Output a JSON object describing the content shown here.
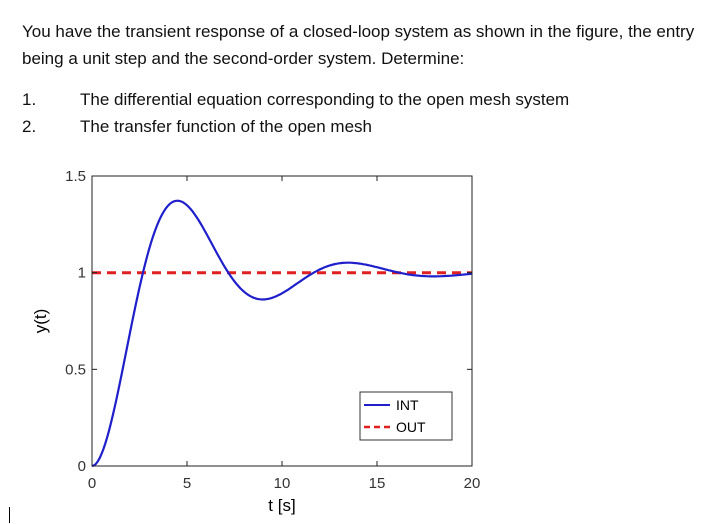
{
  "problem": {
    "statement": "You have the transient response of a closed-loop system as shown in the figure, the entry being a unit step and the second-order system. Determine:",
    "items": [
      {
        "number": "1.",
        "text": "The differential equation corresponding to the open mesh system"
      },
      {
        "number": "2.",
        "text": "The transfer function of the open mesh"
      }
    ]
  },
  "chart_data": {
    "type": "line",
    "xlabel": "t [s]",
    "ylabel": "y(t)",
    "xlim": [
      0,
      20
    ],
    "ylim": [
      0,
      1.5
    ],
    "xticks": [
      0,
      5,
      10,
      15,
      20
    ],
    "yticks": [
      0,
      0.5,
      1,
      1.5
    ],
    "xtick_labels": [
      "0",
      "5",
      "10",
      "15",
      "20"
    ],
    "ytick_labels": [
      "0",
      "0.5",
      "1",
      "1.5"
    ],
    "legend_position": "bottom-right",
    "series": [
      {
        "name": "INT",
        "color": "#1f1fcc",
        "style": "solid",
        "model": "second-order step response",
        "overshoot_peak": [
          4.5,
          1.4
        ],
        "undershoot": [
          8.8,
          0.83
        ],
        "second_peak": [
          13.2,
          1.07
        ],
        "final_value": 1.0
      },
      {
        "name": "OUT",
        "color": "#e02020",
        "style": "dashed",
        "values": [
          [
            0,
            1
          ],
          [
            20,
            1
          ]
        ]
      }
    ]
  }
}
